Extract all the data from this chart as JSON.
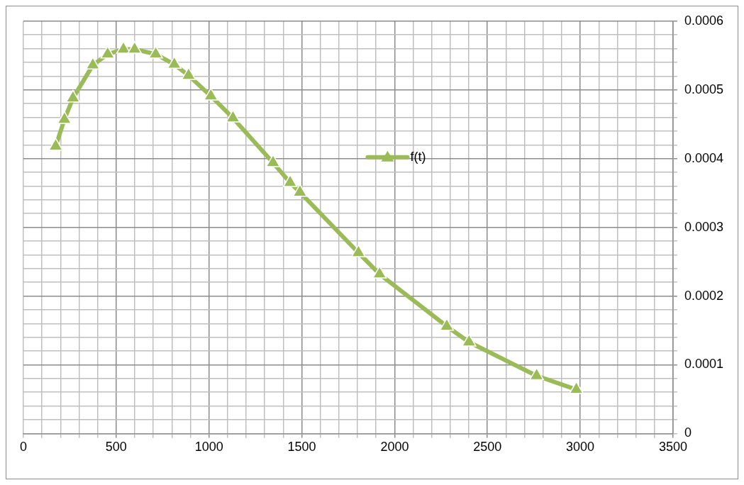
{
  "chart_data": {
    "type": "line",
    "series": [
      {
        "name": "f(t)",
        "color": "#9bbb59",
        "x": [
          174,
          221,
          267,
          374,
          454,
          539,
          599,
          713,
          813,
          890,
          1010,
          1129,
          1345,
          1437,
          1490,
          1805,
          1919,
          2281,
          2401,
          2765,
          2979
        ],
        "values": [
          0.000418,
          0.000457,
          0.000488,
          0.000536,
          0.000552,
          0.000559,
          0.000559,
          0.000552,
          0.000537,
          0.000521,
          0.000491,
          0.000459,
          0.000394,
          0.000365,
          0.000351,
          0.000263,
          0.000232,
          0.000156,
          0.000133,
          8.4e-05,
          6.4e-05
        ]
      }
    ],
    "xlim": [
      0,
      3500
    ],
    "xticks": [
      0,
      {
        "value": 100,
        "label": null
      },
      {
        "value": 200,
        "label": null
      },
      {
        "value": 300,
        "label": null
      },
      {
        "value": 400,
        "label": null
      },
      500,
      {
        "value": 600,
        "label": null
      },
      {
        "value": 700,
        "label": null
      },
      {
        "value": 800,
        "label": null
      },
      {
        "value": 900,
        "label": null
      },
      1000,
      {
        "value": 1100,
        "label": null
      },
      {
        "value": 1200,
        "label": null
      },
      {
        "value": 1300,
        "label": null
      },
      {
        "value": 1400,
        "label": null
      },
      1500,
      {
        "value": 1600,
        "label": null
      },
      {
        "value": 1700,
        "label": null
      },
      {
        "value": 1800,
        "label": null
      },
      {
        "value": 1900,
        "label": null
      },
      2000,
      {
        "value": 2100,
        "label": null
      },
      {
        "value": 2200,
        "label": null
      },
      {
        "value": 2300,
        "label": null
      },
      {
        "value": 2400,
        "label": null
      },
      2500,
      {
        "value": 2600,
        "label": null
      },
      {
        "value": 2700,
        "label": null
      },
      {
        "value": 2800,
        "label": null
      },
      {
        "value": 2900,
        "label": null
      },
      3000,
      {
        "value": 3100,
        "label": null
      },
      {
        "value": 3200,
        "label": null
      },
      {
        "value": 3300,
        "label": null
      },
      {
        "value": 3400,
        "label": null
      },
      3500
    ],
    "ylim": [
      0,
      0.0006
    ],
    "yticks": [
      0,
      {
        "value": 2e-05,
        "label": null
      },
      {
        "value": 4e-05,
        "label": null
      },
      {
        "value": 6e-05,
        "label": null
      },
      {
        "value": 8e-05,
        "label": null
      },
      0.0001,
      {
        "value": 0.00012,
        "label": null
      },
      {
        "value": 0.00014,
        "label": null
      },
      {
        "value": 0.00016,
        "label": null
      },
      {
        "value": 0.00018,
        "label": null
      },
      0.0002,
      {
        "value": 0.00022,
        "label": null
      },
      {
        "value": 0.00024,
        "label": null
      },
      {
        "value": 0.00026,
        "label": null
      },
      {
        "value": 0.00028,
        "label": null
      },
      0.0003,
      {
        "value": 0.00032,
        "label": null
      },
      {
        "value": 0.00034,
        "label": null
      },
      {
        "value": 0.00036,
        "label": null
      },
      {
        "value": 0.00038,
        "label": null
      },
      0.0004,
      {
        "value": 0.00042,
        "label": null
      },
      {
        "value": 0.00044,
        "label": null
      },
      {
        "value": 0.00046,
        "label": null
      },
      {
        "value": 0.00048,
        "label": null
      },
      0.0005,
      {
        "value": 0.00052,
        "label": null
      },
      {
        "value": 0.00054,
        "label": null
      },
      {
        "value": 0.00056,
        "label": null
      },
      {
        "value": 0.00058,
        "label": null
      },
      0.0006
    ],
    "grid": true,
    "legend": "right",
    "marker": "triangle",
    "line_style": "solid"
  }
}
